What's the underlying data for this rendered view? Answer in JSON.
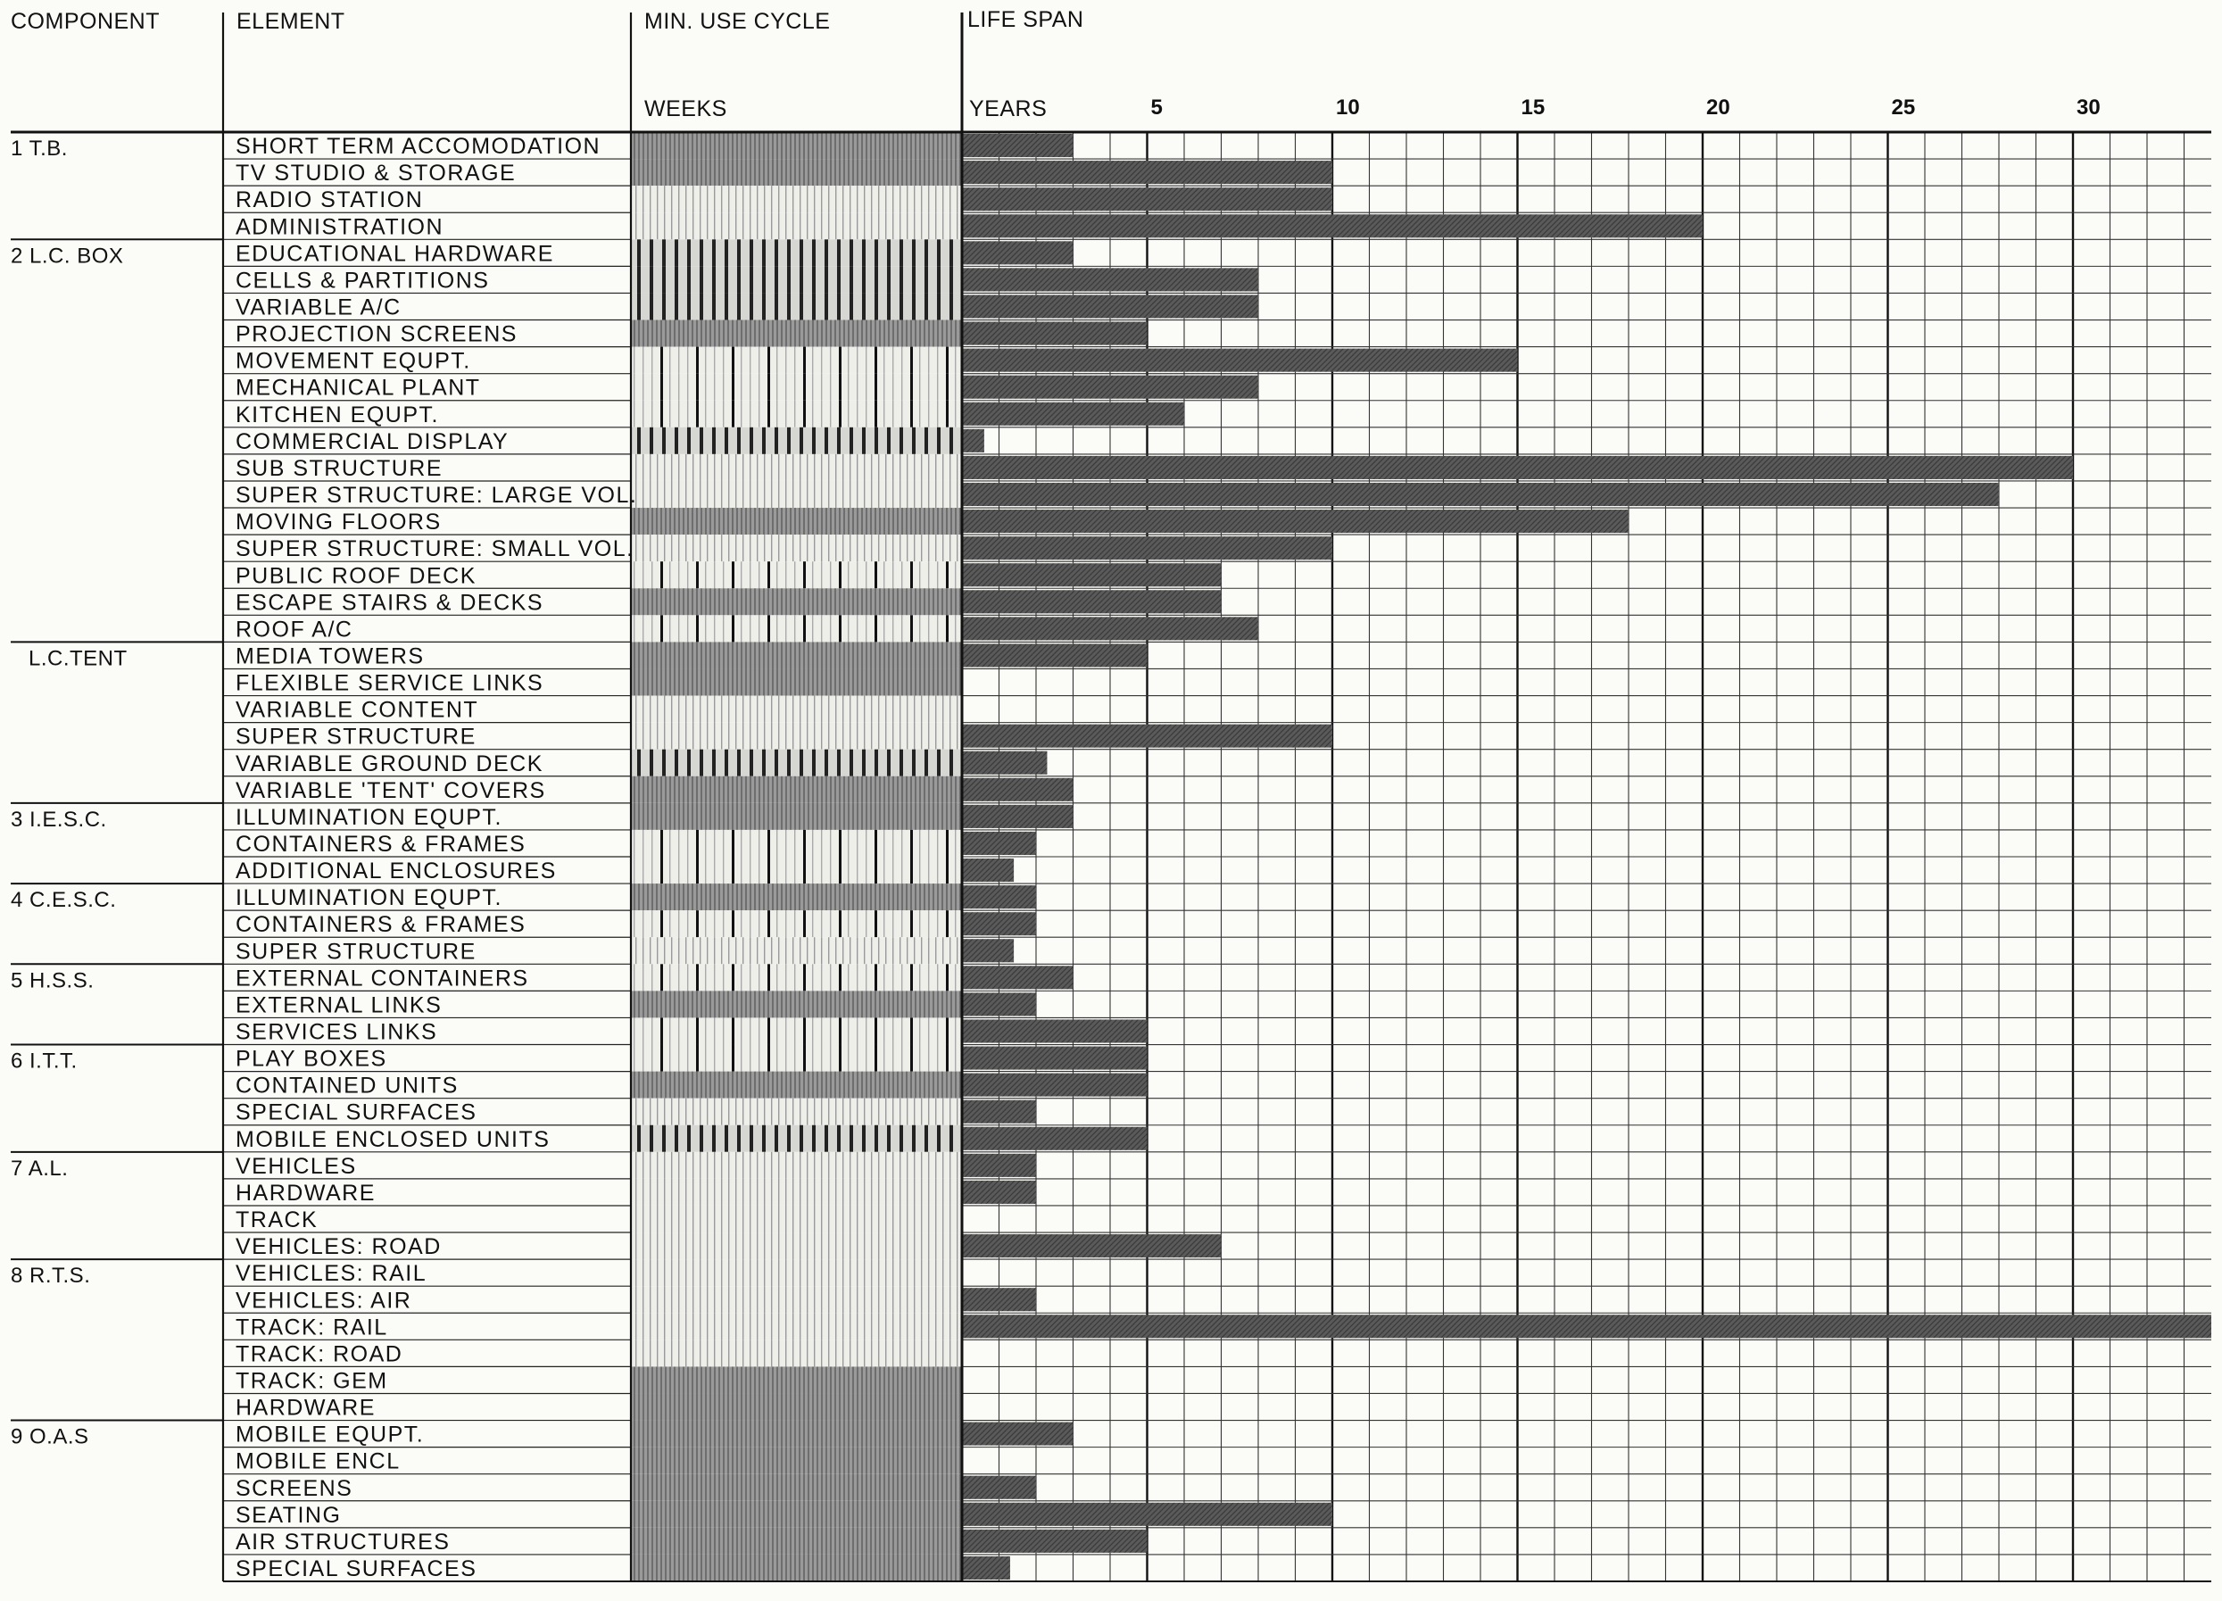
{
  "headers": {
    "component": "COMPONENT",
    "element": "ELEMENT",
    "min_use_cycle": "MIN. USE CYCLE",
    "weeks": "WEEKS",
    "life_span": "LIFE SPAN",
    "years": "YEARS"
  },
  "colors": {
    "bar": "#5a5a5a",
    "grid": "#222222",
    "background": "#fbfbf8"
  },
  "chart_data": {
    "type": "bar",
    "orientation": "horizontal",
    "x_unit": "years",
    "xlim": [
      0,
      34
    ],
    "x_ticks": [
      5,
      10,
      15,
      20,
      25,
      30
    ],
    "x_minor_step": 1,
    "grid": true,
    "groups": [
      {
        "label": "1 T.B.",
        "start": 0
      },
      {
        "label": "2 L.C. BOX",
        "start": 4
      },
      {
        "label": "L.C.TENT",
        "start": 19
      },
      {
        "label": "3 I.E.S.C.",
        "start": 25
      },
      {
        "label": "4 C.E.S.C.",
        "start": 28
      },
      {
        "label": "5 H.S.S.",
        "start": 31
      },
      {
        "label": "6 I.T.T.",
        "start": 34
      },
      {
        "label": "7 A.L.",
        "start": 38
      },
      {
        "label": "8 R.T.S.",
        "start": 42
      },
      {
        "label": "9 O.A.S",
        "start": 48
      }
    ],
    "rows": [
      {
        "element": "SHORT TERM ACCOMODATION",
        "years": 3,
        "cycle": "dense"
      },
      {
        "element": "TV STUDIO & STORAGE",
        "years": 10,
        "cycle": "dense"
      },
      {
        "element": "RADIO STATION",
        "years": 10,
        "cycle": "fine"
      },
      {
        "element": "ADMINISTRATION",
        "years": 20,
        "cycle": "fine"
      },
      {
        "element": "EDUCATIONAL HARDWARE",
        "years": 3,
        "cycle": "bars"
      },
      {
        "element": "CELLS & PARTITIONS",
        "years": 8,
        "cycle": "bars"
      },
      {
        "element": "VARIABLE A/C",
        "years": 8,
        "cycle": "bars"
      },
      {
        "element": "PROJECTION SCREENS",
        "years": 5,
        "cycle": "dense"
      },
      {
        "element": "MOVEMENT EQUPT.",
        "years": 15,
        "cycle": "sparse"
      },
      {
        "element": "MECHANICAL PLANT",
        "years": 8,
        "cycle": "sparse"
      },
      {
        "element": "KITCHEN EQUPT.",
        "years": 6,
        "cycle": "sparse"
      },
      {
        "element": "COMMERCIAL DISPLAY",
        "years": 0.6,
        "cycle": "bars"
      },
      {
        "element": "SUB STRUCTURE",
        "years": 30,
        "cycle": "fine"
      },
      {
        "element": "SUPER STRUCTURE: LARGE VOL.",
        "years": 28,
        "cycle": "fine"
      },
      {
        "element": "MOVING FLOORS",
        "years": 18,
        "cycle": "dense"
      },
      {
        "element": "SUPER STRUCTURE: SMALL VOL.",
        "years": 10,
        "cycle": "fine"
      },
      {
        "element": "PUBLIC ROOF DECK",
        "years": 7,
        "cycle": "sparse"
      },
      {
        "element": "ESCAPE STAIRS & DECKS",
        "years": 7,
        "cycle": "dense"
      },
      {
        "element": "ROOF A/C",
        "years": 8,
        "cycle": "sparse"
      },
      {
        "element": "MEDIA TOWERS",
        "years": 5,
        "cycle": "dense"
      },
      {
        "element": "FLEXIBLE SERVICE LINKS",
        "years": 0,
        "cycle": "dense"
      },
      {
        "element": "VARIABLE CONTENT",
        "years": 0,
        "cycle": "fine"
      },
      {
        "element": "SUPER STRUCTURE",
        "years": 10,
        "cycle": "fine"
      },
      {
        "element": "VARIABLE GROUND DECK",
        "years": 2.3,
        "cycle": "bars"
      },
      {
        "element": "VARIABLE 'TENT' COVERS",
        "years": 3,
        "cycle": "dense"
      },
      {
        "element": "ILLUMINATION EQUPT.",
        "years": 3,
        "cycle": "dense"
      },
      {
        "element": "CONTAINERS & FRAMES",
        "years": 2,
        "cycle": "sparse"
      },
      {
        "element": "ADDITIONAL ENCLOSURES",
        "years": 1.4,
        "cycle": "sparse"
      },
      {
        "element": "ILLUMINATION EQUPT.",
        "years": 2,
        "cycle": "dense"
      },
      {
        "element": "CONTAINERS & FRAMES",
        "years": 2,
        "cycle": "sparse"
      },
      {
        "element": "SUPER STRUCTURE",
        "years": 1.4,
        "cycle": "fine"
      },
      {
        "element": "EXTERNAL CONTAINERS",
        "years": 3,
        "cycle": "sparse"
      },
      {
        "element": "EXTERNAL LINKS",
        "years": 2,
        "cycle": "dense"
      },
      {
        "element": "SERVICES LINKS",
        "years": 5,
        "cycle": "sparse"
      },
      {
        "element": "PLAY BOXES",
        "years": 5,
        "cycle": "sparse"
      },
      {
        "element": "CONTAINED UNITS",
        "years": 5,
        "cycle": "dense"
      },
      {
        "element": "SPECIAL SURFACES",
        "years": 2,
        "cycle": "fine"
      },
      {
        "element": "MOBILE ENCLOSED UNITS",
        "years": 5,
        "cycle": "bars"
      },
      {
        "element": "VEHICLES",
        "years": 2,
        "cycle": "fine"
      },
      {
        "element": "HARDWARE",
        "years": 2,
        "cycle": "fine"
      },
      {
        "element": "TRACK",
        "years": 0,
        "cycle": "fine"
      },
      {
        "element": "VEHICLES: ROAD",
        "years": 7,
        "cycle": "fine"
      },
      {
        "element": "VEHICLES: RAIL",
        "years": 0,
        "cycle": "fine"
      },
      {
        "element": "VEHICLES: AIR",
        "years": 2,
        "cycle": "fine"
      },
      {
        "element": "TRACK: RAIL",
        "years": 34,
        "cycle": "fine"
      },
      {
        "element": "TRACK: ROAD",
        "years": 0,
        "cycle": "fine"
      },
      {
        "element": "TRACK: GEM",
        "years": 0,
        "cycle": "dense"
      },
      {
        "element": "HARDWARE",
        "years": 0,
        "cycle": "dense"
      },
      {
        "element": "MOBILE EQUPT.",
        "years": 3,
        "cycle": "dense"
      },
      {
        "element": "MOBILE ENCL",
        "years": 0,
        "cycle": "dense"
      },
      {
        "element": "SCREENS",
        "years": 2,
        "cycle": "dense"
      },
      {
        "element": "SEATING",
        "years": 10,
        "cycle": "dense"
      },
      {
        "element": "AIR STRUCTURES",
        "years": 5,
        "cycle": "dense"
      },
      {
        "element": "SPECIAL SURFACES",
        "years": 1.3,
        "cycle": "dense"
      }
    ]
  }
}
